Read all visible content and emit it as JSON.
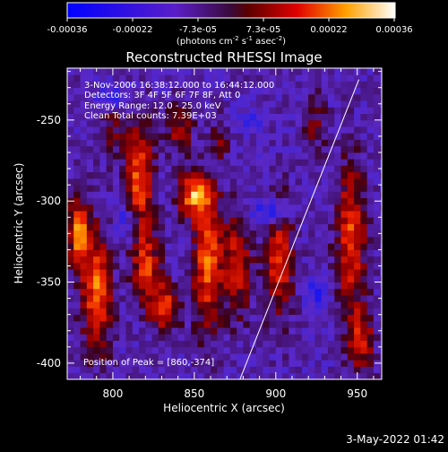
{
  "colorbar": {
    "ticks": [
      "-0.00036",
      "-0.00022",
      "-7.3e-05",
      "7.3e-05",
      "0.00022",
      "0.00036"
    ],
    "unit": "(photons cm",
    "unit_exp1": "-2",
    "unit_mid": " s",
    "unit_exp2": "-1",
    "unit_end": " asec",
    "unit_exp3": "-2",
    "unit_close": ")"
  },
  "info_lines": [
    "3-Nov-2006 16:38:12.000 to 16:44:12.000",
    "Detectors: 3F 4F 5F 6F 7F 8F, Att 0",
    "Energy Range: 12.0 - 25.0 keV",
    "Clean    Total counts: 7.39E+03"
  ],
  "peak_label": "Position of Peak = [860,-374]",
  "timestamp": "3-May-2022 01:42",
  "chart_data": {
    "type": "heatmap",
    "title": "Reconstructed RHESSI Image",
    "xlabel": "Heliocentric X (arcsec)",
    "ylabel": "Heliocentric Y (arcsec)",
    "xlim": [
      772,
      965
    ],
    "ylim": [
      -410,
      -218
    ],
    "xticks": [
      800,
      850,
      900,
      950
    ],
    "yticks": [
      -250,
      -300,
      -350,
      -400
    ],
    "zlim": [
      -0.00036,
      0.00036
    ],
    "grid": false,
    "peak": [
      860,
      -374
    ],
    "limb_line": [
      [
        878,
        -410
      ],
      [
        951,
        -225
      ]
    ],
    "sources": [
      {
        "x": 779,
        "y": -320,
        "sx": 4,
        "sy": 16,
        "amp": 0.00032
      },
      {
        "x": 790,
        "y": -355,
        "sx": 6,
        "sy": 25,
        "amp": 0.0003
      },
      {
        "x": 800,
        "y": -250,
        "sx": 5,
        "sy": 14,
        "amp": 0.00012
      },
      {
        "x": 816,
        "y": -285,
        "sx": 6,
        "sy": 22,
        "amp": 0.00028
      },
      {
        "x": 820,
        "y": -340,
        "sx": 6,
        "sy": 16,
        "amp": 0.00024
      },
      {
        "x": 832,
        "y": -365,
        "sx": 6,
        "sy": 10,
        "amp": 0.00026
      },
      {
        "x": 840,
        "y": -255,
        "sx": 6,
        "sy": 10,
        "amp": 0.00016
      },
      {
        "x": 850,
        "y": -296,
        "sx": 7,
        "sy": 9,
        "amp": 0.00033
      },
      {
        "x": 858,
        "y": -338,
        "sx": 6,
        "sy": 28,
        "amp": 0.00029
      },
      {
        "x": 866,
        "y": -262,
        "sx": 4,
        "sy": 9,
        "amp": 0.00012
      },
      {
        "x": 876,
        "y": -338,
        "sx": 6,
        "sy": 22,
        "amp": 0.00021
      },
      {
        "x": 902,
        "y": -335,
        "sx": 6,
        "sy": 24,
        "amp": 0.00024
      },
      {
        "x": 924,
        "y": -252,
        "sx": 5,
        "sy": 12,
        "amp": 0.00011
      },
      {
        "x": 946,
        "y": -322,
        "sx": 6,
        "sy": 30,
        "amp": 0.00026
      },
      {
        "x": 952,
        "y": -385,
        "sx": 6,
        "sy": 14,
        "amp": 0.0002
      },
      {
        "x": 799,
        "y": -236,
        "sx": 6,
        "sy": 6,
        "amp": -0.00018
      },
      {
        "x": 897,
        "y": -307,
        "sx": 7,
        "sy": 6,
        "amp": -0.0002
      },
      {
        "x": 925,
        "y": -356,
        "sx": 5,
        "sy": 6,
        "amp": -0.00016
      },
      {
        "x": 808,
        "y": -312,
        "sx": 4,
        "sy": 8,
        "amp": -0.00014
      },
      {
        "x": 885,
        "y": -250,
        "sx": 6,
        "sy": 5,
        "amp": -0.00012
      }
    ]
  }
}
